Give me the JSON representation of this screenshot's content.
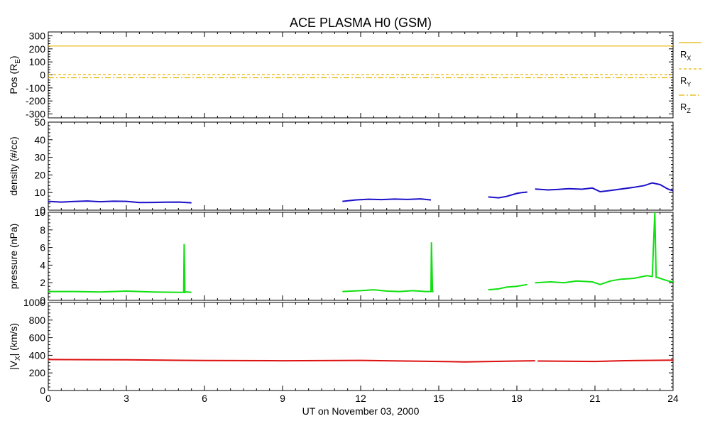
{
  "title": "ACE PLASMA H0 (GSM)",
  "xlabel": "UT on November 03, 2000",
  "colors": {
    "rx": "#e8b400",
    "ry": "#e8b400",
    "rz": "#e8b400",
    "density": "#1c10c8",
    "pressure": "#10e010",
    "vx": "#dd1010"
  },
  "chart_data": [
    {
      "type": "line",
      "panel": "position",
      "ylabel": "Pos (R",
      "ylabel_sub": "E",
      "ylabel_end": ")",
      "xlim": [
        0,
        24
      ],
      "ylim": [
        -330,
        330
      ],
      "yticks": [
        -300,
        -200,
        -100,
        0,
        100,
        200,
        300
      ],
      "legend": "right",
      "series": [
        {
          "name": "R",
          "sub": "X",
          "x": [
            0,
            24
          ],
          "y": [
            222,
            222
          ],
          "style": "solid"
        },
        {
          "name": "R",
          "sub": "Y",
          "x": [
            0,
            24
          ],
          "y": [
            2,
            2
          ],
          "style": "dashed"
        },
        {
          "name": "R",
          "sub": "Z",
          "x": [
            0,
            24
          ],
          "y": [
            -22,
            -22
          ],
          "style": "dashdot"
        }
      ]
    },
    {
      "type": "line",
      "panel": "density",
      "ylabel": "density (#/cc)",
      "xlim": [
        0,
        24
      ],
      "ylim": [
        0,
        50
      ],
      "yticks": [
        0,
        10,
        20,
        30,
        40,
        50
      ],
      "series": [
        {
          "x": [
            0.0,
            0.5,
            1.0,
            1.5,
            2.0,
            2.5,
            3.0,
            3.5,
            4.0,
            4.5,
            5.0,
            5.5
          ],
          "y": [
            5.0,
            4.6,
            4.9,
            5.2,
            4.8,
            5.1,
            5.0,
            4.3,
            4.4,
            4.5,
            4.6,
            4.2
          ]
        },
        {
          "x": [
            11.3,
            11.8,
            12.3,
            12.8,
            13.3,
            13.8,
            14.3,
            14.7
          ],
          "y": [
            5.0,
            5.8,
            6.2,
            6.0,
            6.3,
            6.1,
            6.4,
            5.8
          ]
        },
        {
          "x": [
            16.9,
            17.3,
            17.6,
            18.0,
            18.2,
            18.4
          ],
          "y": [
            7.5,
            7.0,
            7.8,
            9.5,
            10.0,
            10.3
          ]
        },
        {
          "x": [
            18.7,
            19.2,
            19.6,
            20.0,
            20.5,
            20.9,
            21.2,
            21.5,
            22.0,
            22.5,
            22.9,
            23.2,
            23.5,
            23.8,
            24.0
          ],
          "y": [
            12.0,
            11.5,
            11.8,
            12.2,
            11.9,
            12.6,
            10.5,
            11.0,
            12.0,
            13.0,
            14.0,
            15.5,
            14.5,
            12.0,
            11.0
          ]
        }
      ]
    },
    {
      "type": "line",
      "panel": "pressure",
      "ylabel": "pressure (nPa)",
      "xlim": [
        0,
        24
      ],
      "ylim": [
        0,
        10
      ],
      "yticks": [
        0,
        2,
        4,
        6,
        8,
        10
      ],
      "series": [
        {
          "x": [
            0.0,
            1.0,
            2.0,
            3.0,
            4.0,
            5.0,
            5.2,
            5.22,
            5.25,
            5.3,
            5.5
          ],
          "y": [
            1.0,
            1.0,
            0.95,
            1.05,
            0.95,
            0.9,
            0.9,
            6.4,
            0.9,
            0.95,
            0.9
          ]
        },
        {
          "x": [
            11.3,
            12.0,
            12.5,
            13.0,
            13.5,
            14.0,
            14.5,
            14.7,
            14.72,
            14.76,
            14.8
          ],
          "y": [
            1.0,
            1.1,
            1.2,
            1.05,
            1.0,
            1.1,
            1.0,
            1.0,
            6.6,
            1.0,
            1.0
          ]
        },
        {
          "x": [
            16.9,
            17.3,
            17.6,
            18.0,
            18.4
          ],
          "y": [
            1.2,
            1.3,
            1.5,
            1.6,
            1.8
          ]
        },
        {
          "x": [
            18.7,
            19.3,
            19.8,
            20.3,
            20.9,
            21.2,
            21.6,
            22.0,
            22.5,
            23.0,
            23.2,
            23.3,
            23.35,
            23.4,
            23.6,
            23.8,
            24.0
          ],
          "y": [
            2.0,
            2.1,
            2.0,
            2.2,
            2.1,
            1.8,
            2.2,
            2.4,
            2.5,
            2.8,
            2.7,
            10.0,
            2.6,
            2.6,
            2.4,
            2.2,
            2.1
          ]
        }
      ]
    },
    {
      "type": "line",
      "panel": "vx",
      "ylabel": "|V",
      "ylabel_sub": "X",
      "ylabel_end": "| (km/s)",
      "xlim": [
        0,
        24
      ],
      "ylim": [
        0,
        1000
      ],
      "yticks": [
        0,
        200,
        400,
        600,
        800,
        1000
      ],
      "xticks": [
        0,
        3,
        6,
        9,
        12,
        15,
        18,
        21,
        24
      ],
      "series": [
        {
          "x": [
            0.0,
            3.0,
            6.0,
            9.0,
            12.0,
            15.0,
            16.0,
            18.0,
            18.7
          ],
          "y": [
            352,
            348,
            340,
            338,
            342,
            330,
            325,
            335,
            338
          ]
        },
        {
          "x": [
            18.8,
            21.0,
            22.0,
            24.0
          ],
          "y": [
            335,
            330,
            338,
            345
          ]
        }
      ]
    }
  ]
}
